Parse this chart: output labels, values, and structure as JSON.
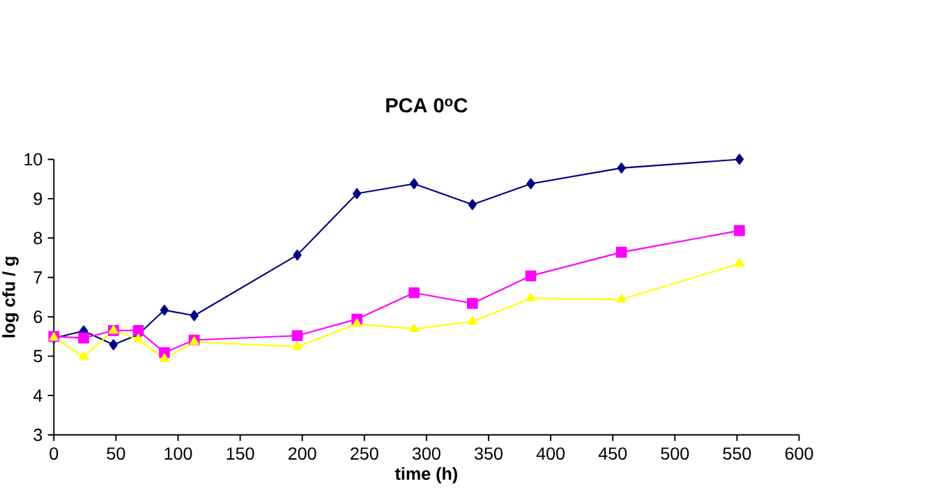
{
  "chart_data": {
    "type": "line",
    "title": "PCA 0$^{o}$C",
    "xlabel": "time (h)",
    "ylabel": "log cfu / g",
    "x": [
      0,
      24,
      48,
      68,
      89,
      113,
      196,
      244,
      290,
      337,
      384,
      457,
      552
    ],
    "series": [
      {
        "color": "#000080",
        "marker": "diamond",
        "values": [
          5.46,
          5.64,
          5.29,
          5.55,
          6.17,
          6.03,
          7.57,
          9.13,
          9.38,
          8.85,
          9.38,
          9.78,
          10.0
        ]
      },
      {
        "color": "#ff00ff",
        "marker": "square",
        "values": [
          5.5,
          5.46,
          5.65,
          5.65,
          5.09,
          5.41,
          5.52,
          5.94,
          6.61,
          6.34,
          7.04,
          7.64,
          8.19
        ]
      },
      {
        "color": "#ffff00",
        "marker": "triangle",
        "values": [
          5.47,
          4.99,
          5.65,
          5.43,
          4.93,
          5.36,
          5.24,
          5.82,
          5.69,
          5.88,
          6.47,
          6.44,
          7.35
        ]
      }
    ],
    "xlim": [
      0,
      600
    ],
    "ylim": [
      3,
      10
    ],
    "xticks": [
      0,
      50,
      100,
      150,
      200,
      250,
      300,
      350,
      400,
      450,
      500,
      550,
      600
    ],
    "yticks": [
      3,
      4,
      5,
      6,
      7,
      8,
      9,
      10
    ],
    "grid": false,
    "line_style": "solid"
  }
}
